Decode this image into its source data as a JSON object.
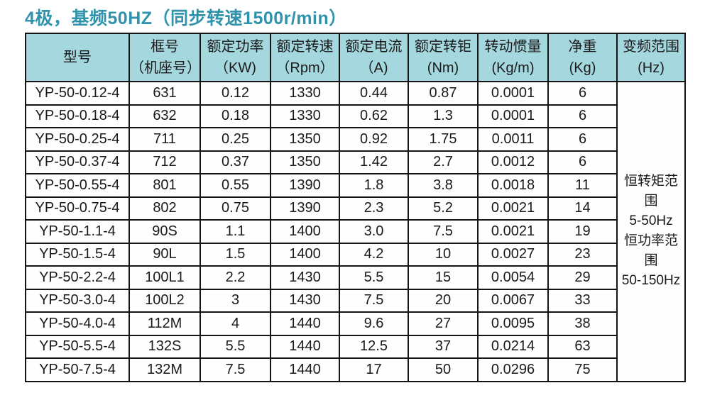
{
  "page": {
    "title": "4极，基频50HZ（同步转速1500r/min）",
    "title_color": "#2F93AB",
    "header_bg": "#A5D7DF",
    "border_color": "#141414"
  },
  "table": {
    "headers": [
      {
        "key": "model",
        "line1": "型号",
        "line2": ""
      },
      {
        "key": "frame",
        "line1": "框号",
        "line2": "（机座号）"
      },
      {
        "key": "power",
        "line1": "额定功率",
        "line2": "（KW)"
      },
      {
        "key": "speed",
        "line1": "额定转速",
        "line2": "（Rpm）"
      },
      {
        "key": "current",
        "line1": "额定电流",
        "line2": "（A)"
      },
      {
        "key": "torque",
        "line1": "额定转钜",
        "line2": "(Nm)"
      },
      {
        "key": "inertia",
        "line1": "转动惯量",
        "line2": "(Kg/m)"
      },
      {
        "key": "weight",
        "line1": "净重",
        "line2": "(Kg)"
      },
      {
        "key": "freq",
        "line1": "变频范围",
        "line2": "(Hz)"
      }
    ],
    "rows": [
      [
        "YP-50-0.12-4",
        "631",
        "0.12",
        "1330",
        "0.44",
        "0.87",
        "0.0001",
        "6"
      ],
      [
        "YP-50-0.18-4",
        "632",
        "0.18",
        "1330",
        "0.62",
        "1.3",
        "0.0001",
        "6"
      ],
      [
        "YP-50-0.25-4",
        "711",
        "0.25",
        "1350",
        "0.92",
        "1.75",
        "0.0011",
        "6"
      ],
      [
        "YP-50-0.37-4",
        "712",
        "0.37",
        "1350",
        "1.42",
        "2.7",
        "0.0012",
        "6"
      ],
      [
        "YP-50-0.55-4",
        "801",
        "0.55",
        "1390",
        "1.8",
        "3.8",
        "0.0018",
        "11"
      ],
      [
        "YP-50-0.75-4",
        "802",
        "0.75",
        "1390",
        "2.3",
        "5.2",
        "0.0021",
        "14"
      ],
      [
        "YP-50-1.1-4",
        "90S",
        "1.1",
        "1400",
        "3.0",
        "7.5",
        "0.0021",
        "19"
      ],
      [
        "YP-50-1.5-4",
        "90L",
        "1.5",
        "1400",
        "4.2",
        "10",
        "0.0027",
        "23"
      ],
      [
        "YP-50-2.2-4",
        "100L1",
        "2.2",
        "1430",
        "5.5",
        "15",
        "0.0054",
        "29"
      ],
      [
        "YP-50-3.0-4",
        "100L2",
        "3",
        "1430",
        "7.5",
        "20",
        "0.0067",
        "33"
      ],
      [
        "YP-50-4.0-4",
        "112M",
        "4",
        "1440",
        "9.6",
        "27",
        "0.0095",
        "38"
      ],
      [
        "YP-50-5.5-4",
        "132S",
        "5.5",
        "1440",
        "12.5",
        "37",
        "0.0214",
        "63"
      ],
      [
        "YP-50-7.5-4",
        "132M",
        "7.5",
        "1440",
        "17",
        "50",
        "0.0296",
        "75"
      ]
    ],
    "freq_range_cell": {
      "lines": [
        "恒转矩范围",
        "5-50Hz",
        "恒功率范围",
        "50-150Hz"
      ]
    }
  }
}
